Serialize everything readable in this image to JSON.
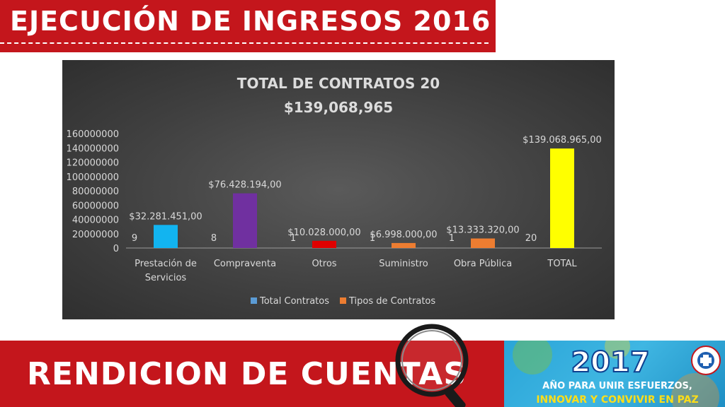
{
  "header": {
    "title": "EJECUCIÓN DE INGRESOS 2016"
  },
  "footer": {
    "title": "RENDICION DE CUENTAS",
    "logo_year": "2017",
    "logo_line1": "AÑO PARA UNIR ESFUERZOS,",
    "logo_line2": "INNOVAR Y CONVIVIR EN PAZ"
  },
  "colors": {
    "banner": "#c4161c",
    "legend_total": "#5b9bd5",
    "legend_tipos": "#ed7d31"
  },
  "chart_data": {
    "type": "bar",
    "title": "TOTAL DE CONTRATOS   20",
    "subtitle": "$139,068,965",
    "categories": [
      "Prestación de Servicios",
      "Compraventa",
      "Otros",
      "Suministro",
      "Obra Pública",
      "TOTAL"
    ],
    "ylim": [
      0,
      160000000
    ],
    "yticks": [
      "0",
      "20000000",
      "40000000",
      "60000000",
      "80000000",
      "100000000",
      "120000000",
      "140000000",
      "160000000"
    ],
    "series": [
      {
        "name": "Total Contratos",
        "values": [
          9,
          8,
          1,
          1,
          1,
          20
        ],
        "labels": [
          "9",
          "8",
          "1",
          "1",
          "1",
          "20"
        ]
      },
      {
        "name": "Tipos de Contratos",
        "values": [
          32281451,
          76428194,
          10028000,
          6998000,
          13333320,
          139068965
        ],
        "labels": [
          "$32.281.451,00",
          "$76.428.194,00",
          "$10.028.000,00",
          "$6.998.000,00",
          "$13.333.320,00",
          "$139.068.965,00"
        ]
      }
    ],
    "bar_colors": [
      "#12b4f0",
      "#7030a0",
      "#e00000",
      "#ed7d31",
      "#ed7d31",
      "#ffff00"
    ],
    "legend_position": "bottom"
  }
}
